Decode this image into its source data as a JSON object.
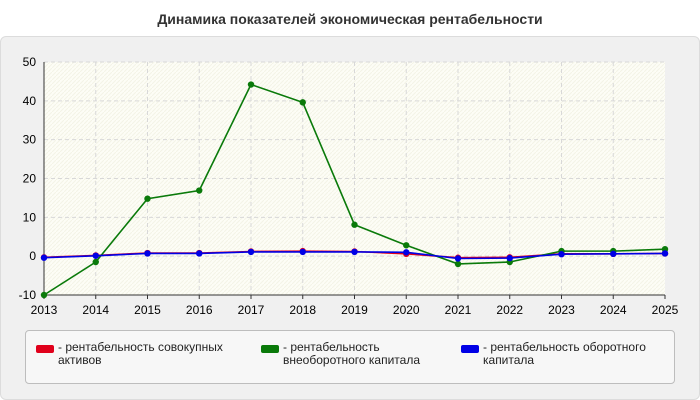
{
  "title": "Динамика показателей экономическая рентабельности",
  "legend": [
    {
      "label": "- рентабельность совокупных активов",
      "color": "#e0001b"
    },
    {
      "label": "- рентабельность внеоборотного капитала",
      "color": "#0a7a0a"
    },
    {
      "label": "- рентабельность оборотного капитала",
      "color": "#0000e6"
    }
  ],
  "chart_data": {
    "type": "line",
    "x": [
      "2013",
      "2014",
      "2015",
      "2016",
      "2017",
      "2018",
      "2019",
      "2020",
      "2021",
      "2022",
      "2023",
      "2024",
      "2025"
    ],
    "ylim": [
      -10,
      50
    ],
    "yticks": [
      -10,
      0,
      10,
      20,
      30,
      40,
      50
    ],
    "grid": true,
    "legend_position": "bottom",
    "series": [
      {
        "name": "- рентабельность совокупных активов",
        "color": "#e0001b",
        "values": [
          -0.3,
          0.2,
          0.8,
          0.8,
          1.2,
          1.3,
          1.2,
          0.6,
          -0.4,
          -0.3,
          0.6,
          0.6,
          0.7
        ]
      },
      {
        "name": "- рентабельность внеоборотного капитала",
        "color": "#0a7a0a",
        "values": [
          -10,
          -1.5,
          14.8,
          16.9,
          44.2,
          39.6,
          8.1,
          2.8,
          -2.0,
          -1.5,
          1.3,
          1.3,
          1.8
        ]
      },
      {
        "name": "- рентабельность оборотного капитала",
        "color": "#0000e6",
        "values": [
          -0.4,
          0.1,
          0.7,
          0.7,
          1.1,
          1.1,
          1.1,
          1.0,
          -0.6,
          -0.5,
          0.5,
          0.6,
          0.7
        ]
      }
    ]
  }
}
